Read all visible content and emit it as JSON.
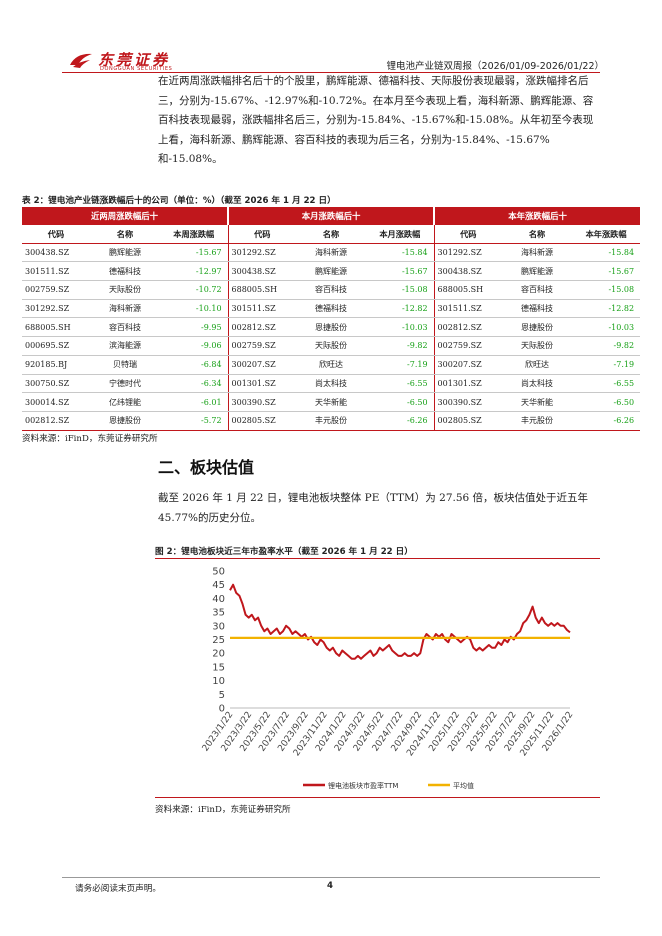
{
  "header": {
    "logo_cn": "东莞证券",
    "logo_en": "DONGGUAN SECURITIES",
    "report_title": "锂电池产业链双周报（2026/01/09-2026/01/22）"
  },
  "intro_paragraph": "在近两周涨跌幅排名后十的个股里，鹏辉能源、德福科技、天际股份表现最弱，涨跌幅排名后三，分别为-15.67%、-12.97%和-10.72%。在本月至今表现上看，海科新源、鹏辉能源、容百科技表现最弱，涨跌幅排名后三，分别为-15.84%、-15.67%和-15.08%。从年初至今表现上看，海科新源、鹏辉能源、容百科技的表现为后三名，分别为-15.84%、-15.67%和-15.08%。",
  "table": {
    "caption": "表 2：锂电池产业链涨跌幅后十的公司（单位：%）（截至 2026 年 1 月 22 日）",
    "groups": [
      "近两周涨跌幅后十",
      "本月涨跌幅后十",
      "本年涨跌幅后十"
    ],
    "headers": [
      [
        "代码",
        "名称",
        "本周涨跌幅"
      ],
      [
        "代码",
        "名称",
        "本月涨跌幅"
      ],
      [
        "代码",
        "名称",
        "本年涨跌幅"
      ]
    ],
    "rows": [
      [
        "300438.SZ",
        "鹏辉能源",
        "-15.67",
        "301292.SZ",
        "海科新源",
        "-15.84",
        "301292.SZ",
        "海科新源",
        "-15.84"
      ],
      [
        "301511.SZ",
        "德福科技",
        "-12.97",
        "300438.SZ",
        "鹏辉能源",
        "-15.67",
        "300438.SZ",
        "鹏辉能源",
        "-15.67"
      ],
      [
        "002759.SZ",
        "天际股份",
        "-10.72",
        "688005.SH",
        "容百科技",
        "-15.08",
        "688005.SH",
        "容百科技",
        "-15.08"
      ],
      [
        "301292.SZ",
        "海科新源",
        "-10.10",
        "301511.SZ",
        "德福科技",
        "-12.82",
        "301511.SZ",
        "德福科技",
        "-12.82"
      ],
      [
        "688005.SH",
        "容百科技",
        "-9.95",
        "002812.SZ",
        "恩捷股份",
        "-10.03",
        "002812.SZ",
        "恩捷股份",
        "-10.03"
      ],
      [
        "000695.SZ",
        "滨海能源",
        "-9.06",
        "002759.SZ",
        "天际股份",
        "-9.82",
        "002759.SZ",
        "天际股份",
        "-9.82"
      ],
      [
        "920185.BJ",
        "贝特瑞",
        "-6.84",
        "300207.SZ",
        "欣旺达",
        "-7.19",
        "300207.SZ",
        "欣旺达",
        "-7.19"
      ],
      [
        "300750.SZ",
        "宁德时代",
        "-6.34",
        "001301.SZ",
        "尚太科技",
        "-6.55",
        "001301.SZ",
        "尚太科技",
        "-6.55"
      ],
      [
        "300014.SZ",
        "亿纬锂能",
        "-6.01",
        "300390.SZ",
        "天华新能",
        "-6.50",
        "300390.SZ",
        "天华新能",
        "-6.50"
      ],
      [
        "002812.SZ",
        "恩捷股份",
        "-5.72",
        "002805.SZ",
        "丰元股份",
        "-6.26",
        "002805.SZ",
        "丰元股份",
        "-6.26"
      ]
    ],
    "source": "资料来源：iFinD，东莞证券研究所"
  },
  "section": {
    "heading": "二、板块估值",
    "paragraph": "截至 2026 年 1 月 22 日，锂电池板块整体 PE（TTM）为 27.56 倍，板块估值处于近五年 45.77%的历史分位。"
  },
  "chart_caption": "图 2：锂电池板块近三年市盈率水平（截至 2026 年 1 月 22 日）",
  "chart_data": {
    "type": "line",
    "title": "",
    "xlabel": "",
    "ylabel": "",
    "ylim": [
      0,
      50
    ],
    "yticks": [
      0,
      5,
      10,
      15,
      20,
      25,
      30,
      35,
      40,
      45,
      50
    ],
    "xticks": [
      "2023/1/22",
      "2023/3/22",
      "2023/5/22",
      "2023/7/22",
      "2023/9/22",
      "2023/11/22",
      "2024/1/22",
      "2024/3/22",
      "2024/5/22",
      "2024/7/22",
      "2024/9/22",
      "2024/11/22",
      "2025/1/22",
      "2025/3/22",
      "2025/5/22",
      "2025/7/22",
      "2025/9/22",
      "2025/11/22",
      "2026/1/22"
    ],
    "grid": false,
    "legend_position": "bottom",
    "series": [
      {
        "name": "锂电池板块市盈率TTM",
        "color": "#c0171c",
        "values": [
          43,
          45,
          42,
          41,
          38,
          34,
          33,
          34,
          32,
          33,
          30,
          28,
          29,
          27,
          28,
          29,
          27,
          28,
          30,
          29,
          27,
          28,
          27,
          26,
          27,
          25,
          26,
          24,
          23,
          25,
          24,
          22,
          21,
          22,
          20,
          19,
          21,
          20,
          19,
          18,
          18,
          19,
          18,
          19,
          20,
          21,
          19,
          20,
          22,
          21,
          22,
          23,
          21,
          20,
          19,
          19,
          20,
          19,
          19,
          20,
          19,
          20,
          25,
          27,
          26,
          25,
          27,
          26,
          27,
          25,
          24,
          27,
          26,
          25,
          24,
          25,
          26,
          25,
          22,
          21,
          22,
          21,
          22,
          23,
          22,
          22,
          24,
          23,
          25,
          24,
          26,
          25,
          27,
          28,
          31,
          32,
          34,
          37,
          33,
          31,
          33,
          31,
          30,
          31,
          30,
          31,
          30,
          30,
          28.5,
          27.6
        ]
      },
      {
        "name": "平均值",
        "color": "#f2b200",
        "values": [
          25.6,
          25.6
        ]
      }
    ]
  }
}
